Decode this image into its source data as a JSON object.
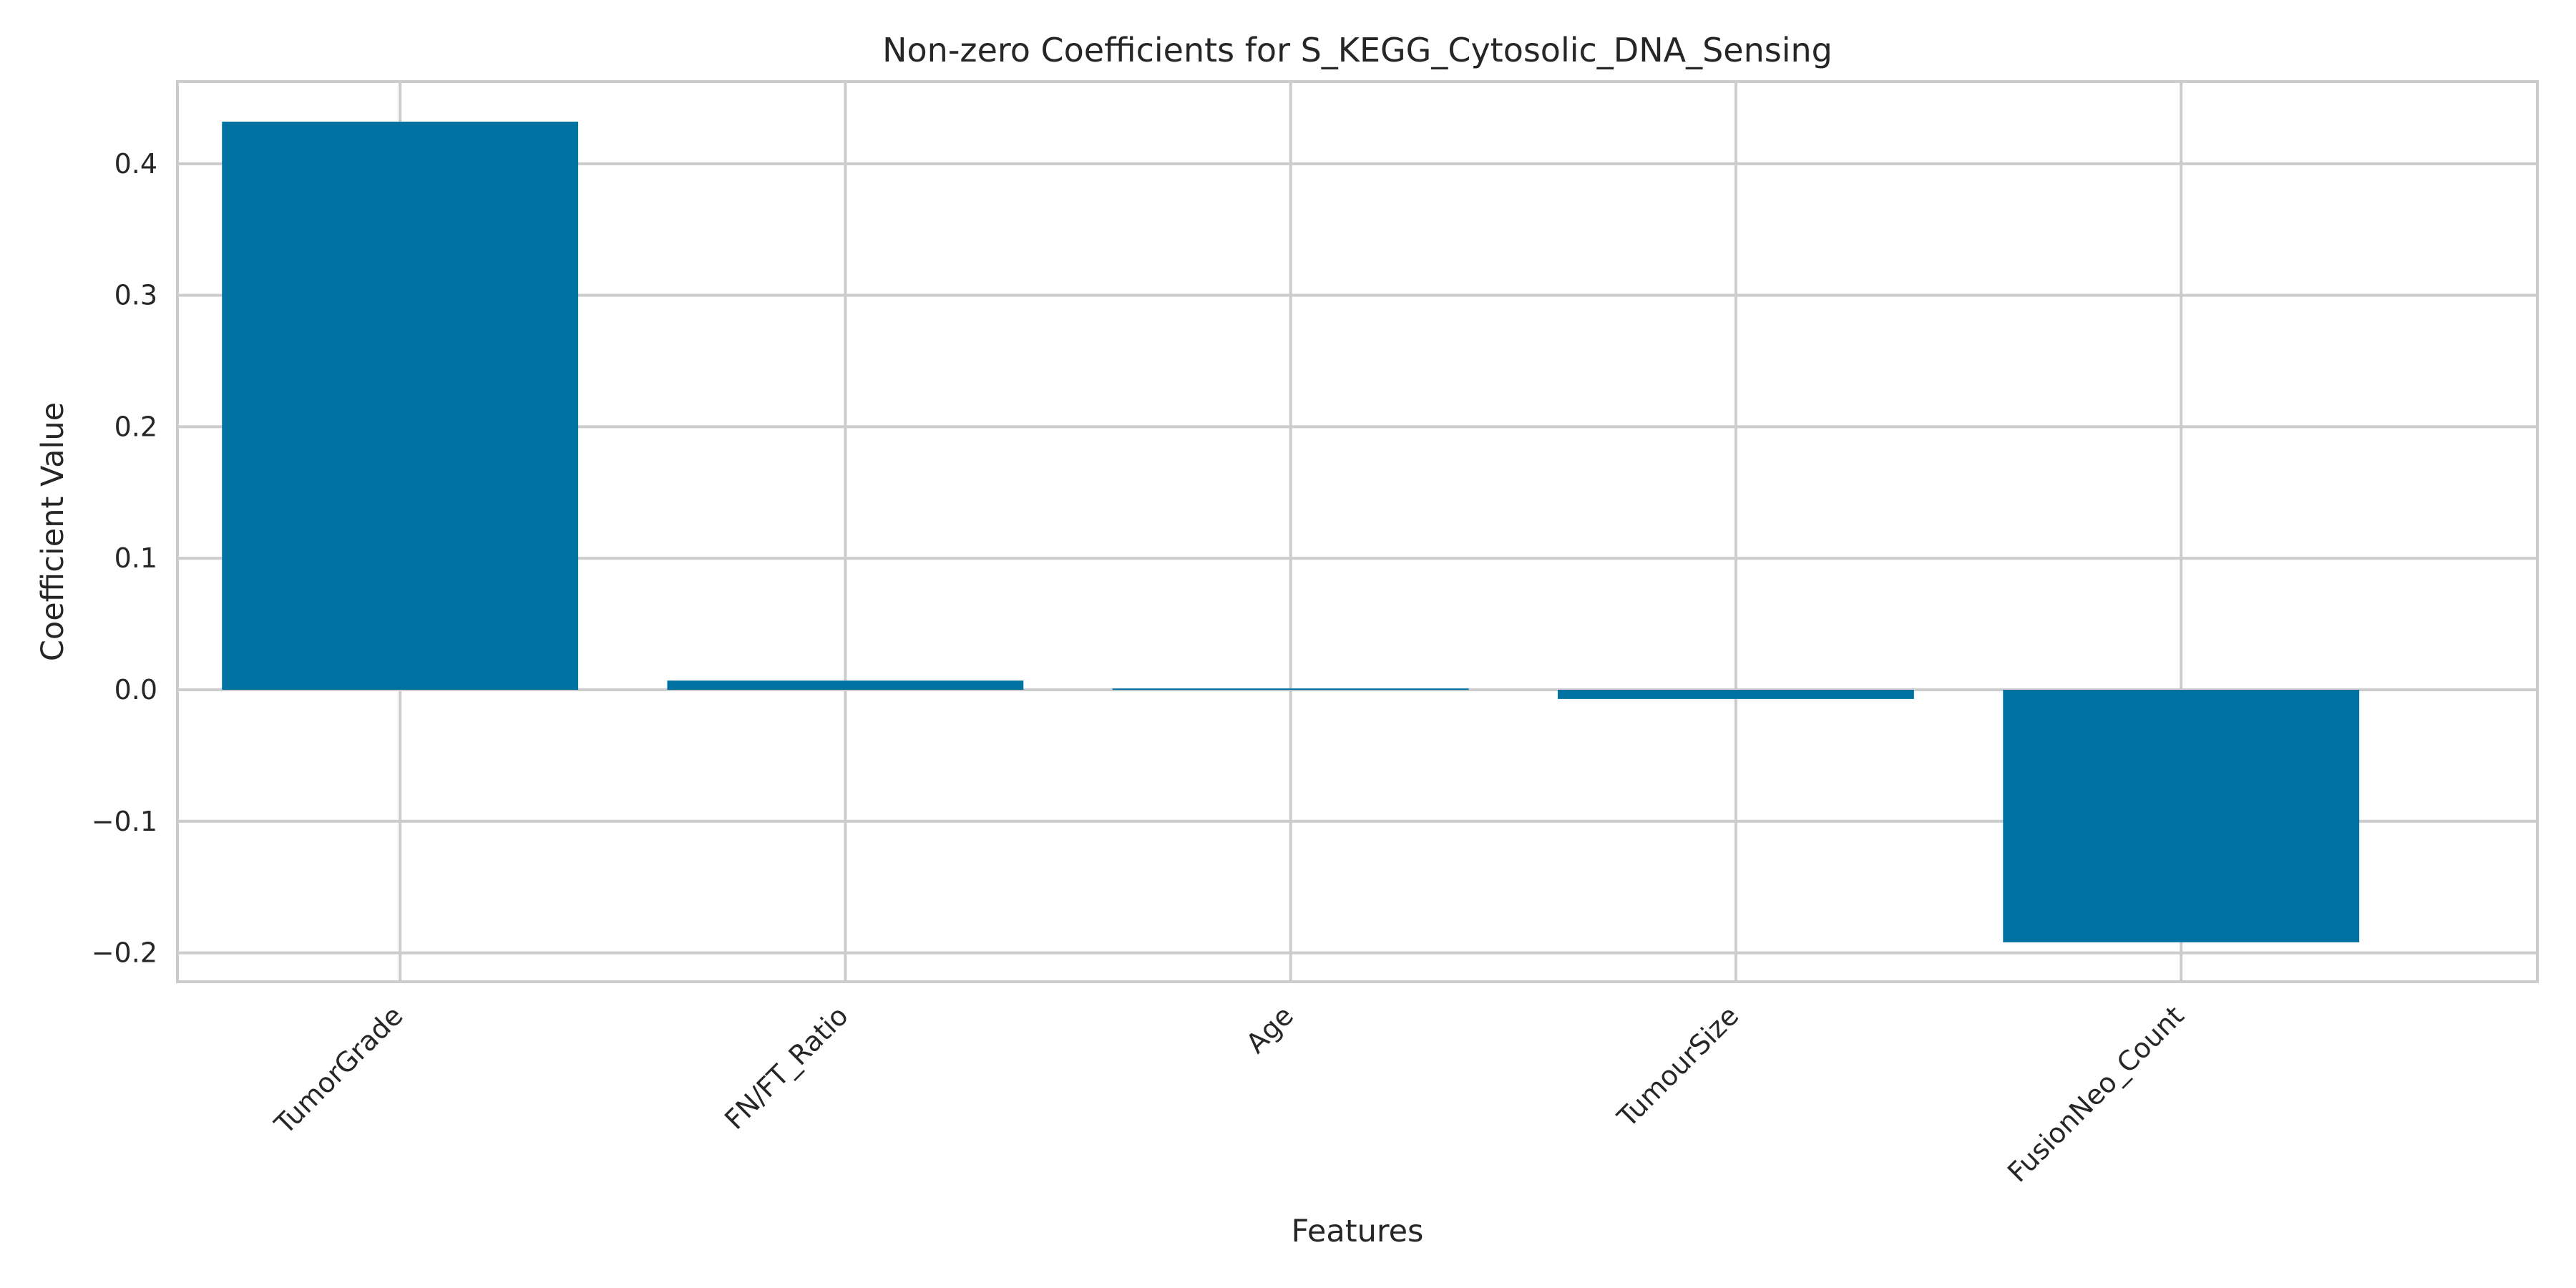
{
  "chart_data": {
    "type": "bar",
    "title": "Non-zero Coefficients for S_KEGG_Cytosolic_DNA_Sensing",
    "xlabel": "Features",
    "ylabel": "Coefficient Value",
    "categories": [
      "TumorGrade",
      "FN/FT_Ratio",
      "Age",
      "TumourSize",
      "FusionNeo_Count"
    ],
    "values": [
      0.432,
      0.007,
      0.001,
      -0.007,
      -0.192
    ],
    "ylim": [
      -0.222,
      0.4625
    ],
    "yticks": [
      -0.2,
      -0.1,
      0.0,
      0.1,
      0.2,
      0.3,
      0.4
    ],
    "ytick_labels": [
      "−0.2",
      "−0.1",
      "0.0",
      "0.1",
      "0.2",
      "0.3",
      "0.4"
    ],
    "grid": true,
    "bar_color": "#0072a2",
    "grid_color": "#cccccc",
    "spine_color": "#cccccc"
  }
}
